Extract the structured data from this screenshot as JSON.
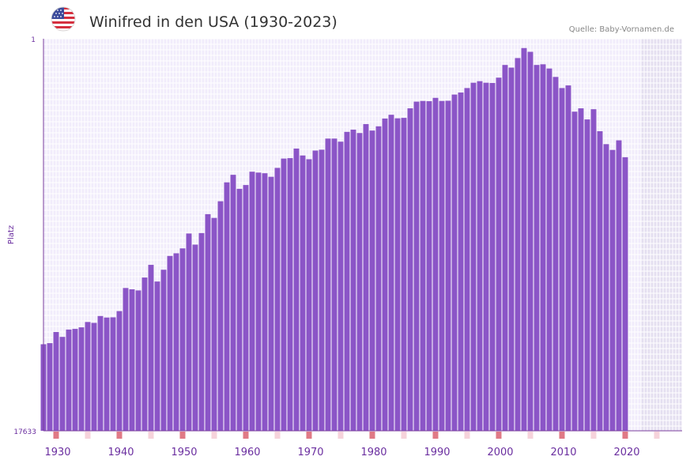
{
  "header": {
    "title": "Winifred in den USA (1930-2023)",
    "source": "Quelle: Baby-Vornamen.de",
    "flag_icon": "us-flag-icon"
  },
  "colors": {
    "bar": "#8b55c7",
    "axis": "#7b3f9e",
    "plot_bg": "#f1ecfb",
    "grid": "#ffffff",
    "future_bg": "#e4dff0",
    "tick_label": "#6b2fa0",
    "decade_marker": "#e07a86",
    "mid_marker": "#f6d3db",
    "title": "#333333",
    "source": "#888888"
  },
  "chart_data": {
    "type": "bar",
    "title": "Winifred in den USA (1930-2023)",
    "ylabel": "Platz",
    "xlabel": "",
    "y_reversed": true,
    "ylim": [
      1,
      17633
    ],
    "y_tick_labels": [
      "1",
      "17633"
    ],
    "x_range": [
      1928,
      2029
    ],
    "x_tick_labels": [
      "1930",
      "1940",
      "1950",
      "1960",
      "1970",
      "1980",
      "1990",
      "2000",
      "2010",
      "2020"
    ],
    "x_ticks": [
      1930,
      1940,
      1950,
      1960,
      1970,
      1980,
      1990,
      2000,
      2010,
      2020
    ],
    "future_from": 2022.5,
    "start_year": 1928,
    "ranks": [
      13740,
      13690,
      13190,
      13410,
      13080,
      13050,
      12980,
      12740,
      12780,
      12470,
      12540,
      12530,
      12250,
      11210,
      11270,
      11320,
      10740,
      10170,
      10920,
      10390,
      9770,
      9650,
      9430,
      8760,
      9260,
      8740,
      7890,
      8060,
      7310,
      6460,
      6120,
      6750,
      6580,
      5980,
      6020,
      6050,
      6210,
      5810,
      5390,
      5370,
      4940,
      5250,
      5420,
      5030,
      4990,
      4490,
      4490,
      4630,
      4190,
      4090,
      4240,
      3840,
      4130,
      3940,
      3590,
      3420,
      3580,
      3560,
      3130,
      2830,
      2800,
      2810,
      2660,
      2800,
      2790,
      2510,
      2420,
      2220,
      1980,
      1910,
      1980,
      1990,
      1750,
      1180,
      1300,
      870,
      420,
      590,
      1180,
      1150,
      1340,
      1720,
      2220,
      2100,
      3280,
      3130,
      3630,
      3170,
      4160,
      4740,
      5000,
      4570,
      5330
    ]
  }
}
